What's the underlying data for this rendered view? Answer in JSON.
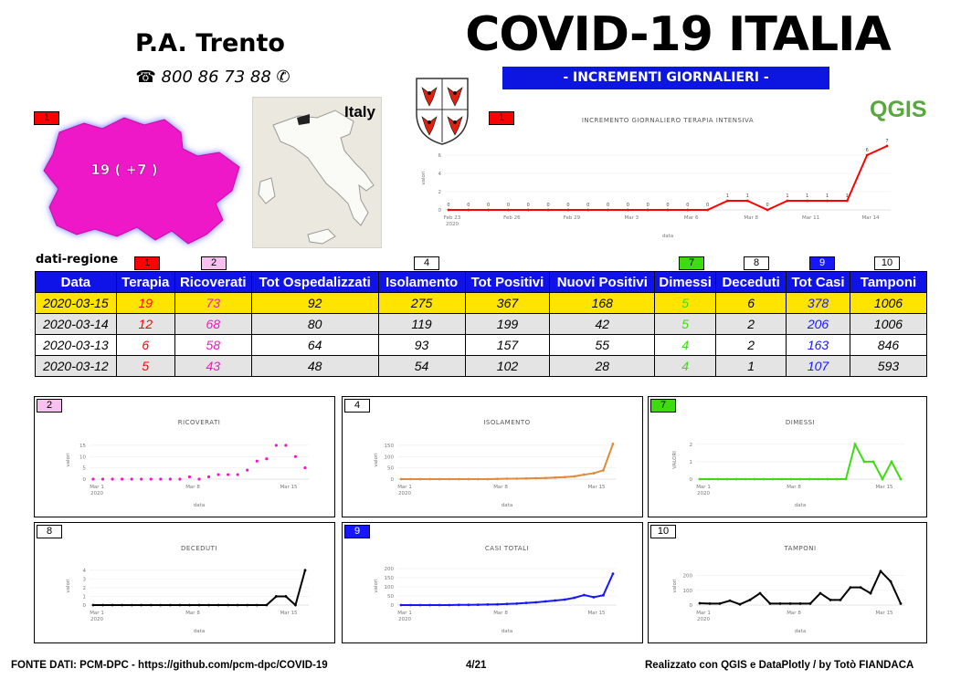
{
  "header": {
    "province": "P.A. Trento",
    "phone": "☎ 800 86 73 88 ✆",
    "title": "COVID-19 ITALIA",
    "subtitle": "- INCREMENTI GIORNALIERI -",
    "logo_text": "QGIS"
  },
  "map": {
    "tag": "1",
    "label": "19 ( +7 )",
    "inset_label": "Italy",
    "fill_color": "#ee18c9"
  },
  "colors": {
    "brand_blue": "#1013e8",
    "highlight": "#ffe400",
    "terapia": "#ff0000",
    "ricoverati": "#ee18c9",
    "dimessi": "#3ddc10",
    "tot_casi": "#1617ff",
    "isolamento": "#e08a3c"
  },
  "table": {
    "section_label": "dati-regione",
    "tags": [
      "1",
      "2",
      "4",
      "7",
      "8",
      "9",
      "10"
    ],
    "columns": [
      "Data",
      "Terapia",
      "Ricoverati",
      "Tot Ospedalizzati",
      "Isolamento",
      "Tot Positivi",
      "Nuovi Positivi",
      "Dimessi",
      "Deceduti",
      "Tot Casi",
      "Tamponi"
    ],
    "rows": [
      [
        "2020-03-15",
        "19",
        "73",
        "92",
        "275",
        "367",
        "168",
        "5",
        "6",
        "378",
        "1006"
      ],
      [
        "2020-03-14",
        "12",
        "68",
        "80",
        "119",
        "199",
        "42",
        "5",
        "2",
        "206",
        "1006"
      ],
      [
        "2020-03-13",
        "6",
        "58",
        "64",
        "93",
        "157",
        "55",
        "4",
        "2",
        "163",
        "846"
      ],
      [
        "2020-03-12",
        "5",
        "43",
        "48",
        "54",
        "102",
        "28",
        "4",
        "1",
        "107",
        "593"
      ]
    ]
  },
  "chart_data": [
    {
      "id": "terapia",
      "tag": "1",
      "type": "line",
      "color": "#ff0000",
      "title": "INCREMENTO GIORNALIERO TERAPIA INTENSIVA",
      "xlabel": "data",
      "ylabel": "valori",
      "x_ticks": [
        "Feb 23\n2020",
        "Feb 26",
        "Feb 29",
        "Mar 3",
        "Mar 6",
        "Mar 8",
        "Mar 11",
        "Mar 14"
      ],
      "y_ticks": [
        "0",
        "2",
        "4",
        "6"
      ],
      "ylim": [
        0,
        7
      ],
      "values": [
        0,
        0,
        0,
        0,
        0,
        0,
        0,
        0,
        0,
        0,
        0,
        0,
        0,
        0,
        1,
        1,
        0,
        1,
        1,
        1,
        1,
        6,
        7
      ],
      "point_labels": true
    },
    {
      "id": "ricoverati",
      "tag": "2",
      "type": "scatter",
      "color": "#ee18c9",
      "title": "RICOVERATI",
      "xlabel": "data",
      "ylabel": "valori",
      "x_ticks": [
        "Mar 1\n2020",
        "Mar 8",
        "Mar 15"
      ],
      "y_ticks": [
        "0",
        "5",
        "10",
        "15"
      ],
      "ylim": [
        0,
        17
      ],
      "values": [
        0,
        0,
        0,
        0,
        0,
        0,
        0,
        0,
        0,
        0,
        1,
        0,
        1,
        2,
        2,
        2,
        4,
        8,
        9,
        15,
        15,
        10,
        5
      ]
    },
    {
      "id": "isolamento",
      "tag": "4",
      "type": "line",
      "color": "#e08a3c",
      "title": "ISOLAMENTO",
      "xlabel": "data",
      "ylabel": "valori",
      "x_ticks": [
        "Mar 1\n2020",
        "Mar 8",
        "Mar 15"
      ],
      "y_ticks": [
        "0",
        "50",
        "100",
        "150"
      ],
      "ylim": [
        0,
        170
      ],
      "values": [
        0,
        0,
        0,
        0,
        0,
        0,
        0,
        0,
        0,
        0,
        1,
        2,
        2,
        3,
        4,
        5,
        7,
        9,
        12,
        20,
        26,
        39,
        156
      ]
    },
    {
      "id": "dimessi",
      "tag": "7",
      "type": "line",
      "color": "#3ddc10",
      "title": "DIMESSI",
      "xlabel": "data",
      "ylabel": "VALORI",
      "x_ticks": [
        "Mar 1\n2020",
        "Mar 8",
        "Mar 15"
      ],
      "y_ticks": [
        "0",
        "1",
        "2"
      ],
      "ylim": [
        0,
        2.2
      ],
      "values": [
        0,
        0,
        0,
        0,
        0,
        0,
        0,
        0,
        0,
        0,
        0,
        0,
        0,
        0,
        0,
        0,
        0,
        2,
        1,
        1,
        0,
        1,
        0
      ]
    },
    {
      "id": "deceduti",
      "tag": "8",
      "type": "line",
      "color": "#000000",
      "title": "DECEDUTI",
      "xlabel": "data",
      "ylabel": "valori",
      "x_ticks": [
        "Mar 1\n2020",
        "Mar 8",
        "Mar 15"
      ],
      "y_ticks": [
        "0",
        "1",
        "2",
        "3",
        "4"
      ],
      "ylim": [
        0,
        4.4
      ],
      "values": [
        0,
        0,
        0,
        0,
        0,
        0,
        0,
        0,
        0,
        0,
        0,
        0,
        0,
        0,
        0,
        0,
        0,
        0,
        0,
        1,
        1,
        0,
        4
      ]
    },
    {
      "id": "casi-totali",
      "tag": "9",
      "type": "line",
      "color": "#1617ff",
      "title": "CASI TOTALI",
      "xlabel": "data",
      "ylabel": "valori",
      "x_ticks": [
        "Mar 1\n2020",
        "Mar 8",
        "Mar 15"
      ],
      "y_ticks": [
        "0",
        "50",
        "100",
        "150",
        "200"
      ],
      "ylim": [
        0,
        210
      ],
      "values": [
        0,
        0,
        0,
        0,
        0,
        0,
        1,
        1,
        2,
        3,
        4,
        6,
        8,
        12,
        15,
        20,
        25,
        30,
        40,
        55,
        43,
        54,
        172
      ]
    },
    {
      "id": "tamponi",
      "tag": "10",
      "type": "line",
      "color": "#000000",
      "title": "TAMPONI",
      "xlabel": "data",
      "ylabel": "valori",
      "x_ticks": [
        "Mar 1\n2020",
        "Mar 8",
        "Mar 15"
      ],
      "y_ticks": [
        "0",
        "100",
        "200"
      ],
      "ylim": [
        0,
        260
      ],
      "values": [
        12,
        10,
        10,
        30,
        5,
        35,
        80,
        10,
        10,
        10,
        10,
        10,
        80,
        35,
        35,
        120,
        120,
        80,
        230,
        160,
        10
      ]
    }
  ],
  "footer": {
    "source": "FONTE DATI: PCM-DPC - https://github.com/pcm-dpc/COVID-19",
    "page": "4/21",
    "credits": "Realizzato con QGIS e DataPlotly / by Totò FIANDACA"
  }
}
